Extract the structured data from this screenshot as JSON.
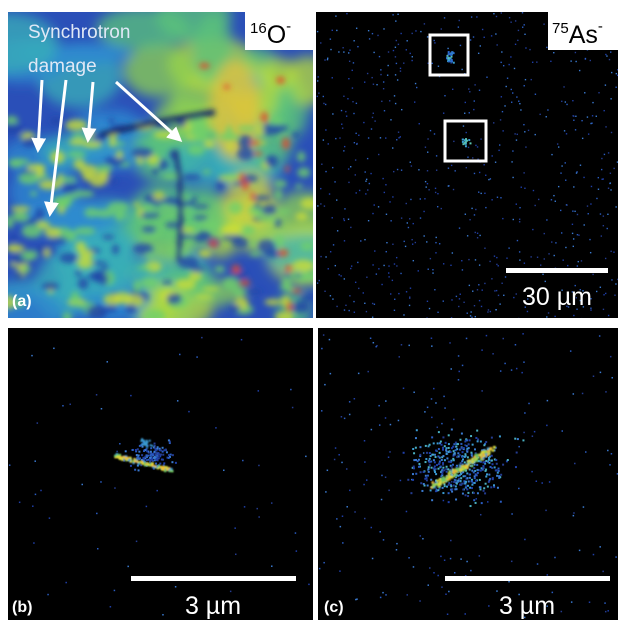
{
  "panels": [
    {
      "label": "(a)",
      "annotation": [
        "Synchrotron",
        "damage"
      ],
      "ion": {
        "mass": "16",
        "element": "O",
        "charge": "-"
      }
    },
    {
      "ion": {
        "mass": "75",
        "element": "As",
        "charge": "-"
      },
      "scale_bar": "30 µm"
    },
    {
      "label": "(b)",
      "scale_bar": "3 µm"
    },
    {
      "label": "(c)",
      "scale_bar": "3 µm"
    }
  ]
}
